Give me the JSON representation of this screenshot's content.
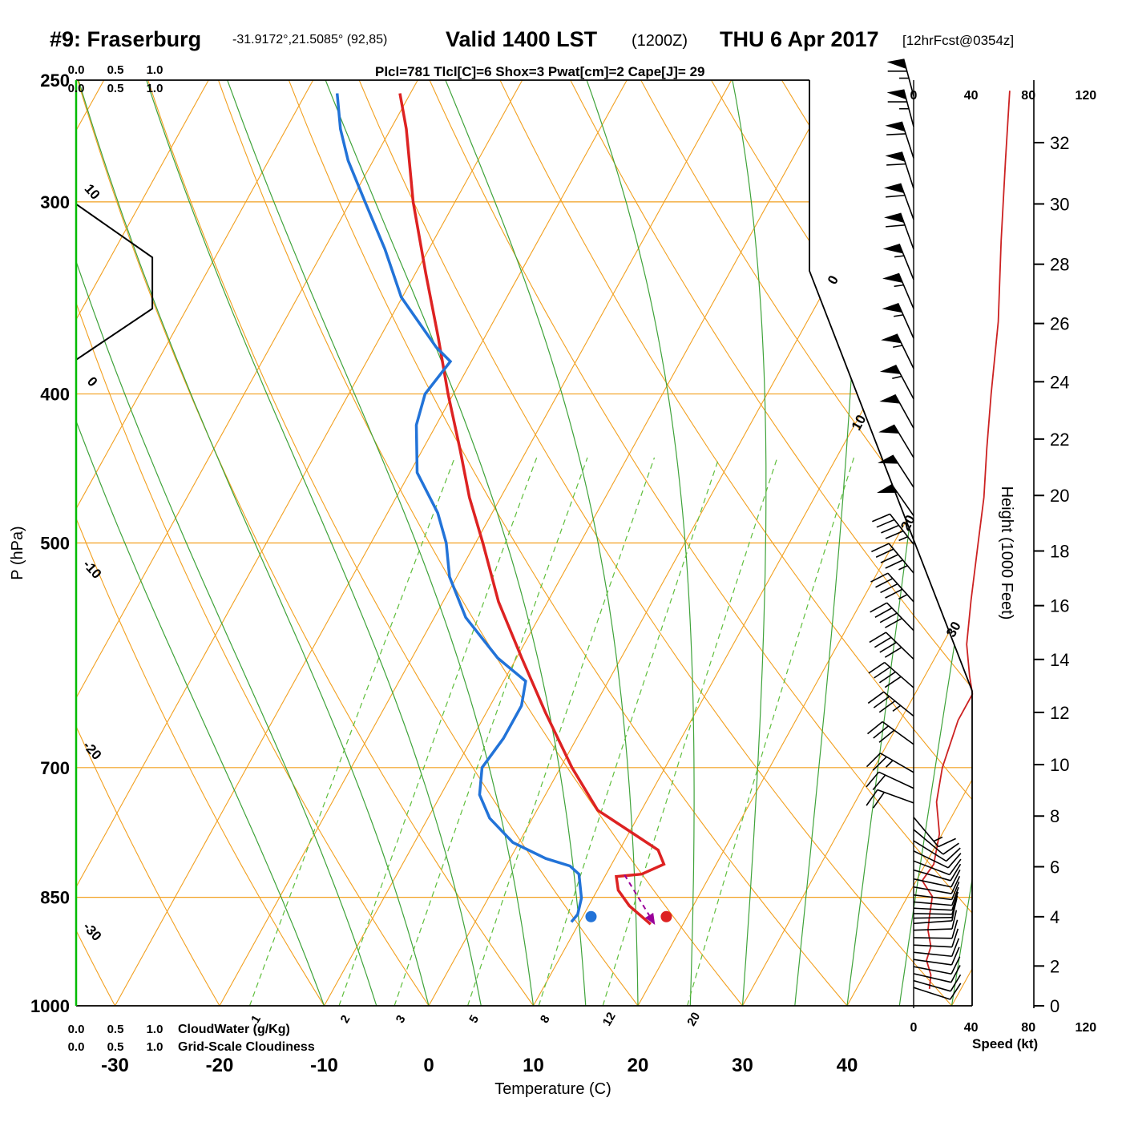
{
  "title": {
    "station": "#9: Fraserburg",
    "coords": "-31.9172°,21.5085° (92,85)",
    "valid": "Valid 1400 LST",
    "zulu": "(1200Z)",
    "date": "THU 6 Apr 2017",
    "fcst": "[12hrFcst@0354z]"
  },
  "params_line": "Plcl=781 Tlcl[C]=6 Shox=3 Pwat[cm]=2 Cape[J]= 29",
  "axes": {
    "pressure_label": "P (hPa)",
    "pressure_ticks": [
      250,
      300,
      400,
      500,
      700,
      850,
      1000
    ],
    "temp_label": "Temperature (C)",
    "temp_ticks": [
      -30,
      -20,
      -10,
      0,
      10,
      20,
      30,
      40
    ],
    "height_label": "Height (1000 Feet)",
    "height_ticks": [
      0,
      2,
      4,
      6,
      8,
      10,
      12,
      14,
      16,
      18,
      20,
      22,
      24,
      26,
      28,
      30,
      32
    ],
    "speed_label": "Speed (kt)",
    "speed_ticks": [
      0,
      40,
      80,
      120
    ],
    "cloud_ticks": [
      "0.0",
      "0.5",
      "1.0"
    ],
    "cloudwater_label": "CloudWater (g/Kg)",
    "cloudiness_label": "Grid-Scale Cloudiness",
    "mixing_ratio_labels": [
      1,
      2,
      3,
      5,
      8,
      12,
      20
    ],
    "dry_adiabat_labels": [
      10,
      0,
      -10,
      -20,
      -30
    ],
    "isotherm_labels": [
      0,
      10,
      20,
      30
    ]
  },
  "colors": {
    "orange": "#F2A020",
    "green": "#3FA33A",
    "lightgreen": "#5FBE3C",
    "darkgreen": "#3E8E2E",
    "brightgreen": "#00BB00",
    "red": "#DD2222",
    "blue": "#2273D8",
    "speed_red": "#CC2222",
    "magenta": "#BB1177",
    "purple": "#990099",
    "black": "#000000"
  },
  "chart_data": {
    "type": "skewt-logp",
    "pressure_range_hpa": [
      1000,
      250
    ],
    "temp_range_c_at_surface": [
      -40,
      45
    ],
    "temperature_profile": [
      [
        255,
        -51
      ],
      [
        269,
        -48.5
      ],
      [
        300,
        -44
      ],
      [
        334,
        -39
      ],
      [
        367,
        -34.5
      ],
      [
        400,
        -30.5
      ],
      [
        434,
        -26.5
      ],
      [
        467,
        -23
      ],
      [
        500,
        -19.3
      ],
      [
        546,
        -14.7
      ],
      [
        594,
        -9.5
      ],
      [
        645,
        -4.3
      ],
      [
        700,
        1.1
      ],
      [
        746,
        5.8
      ],
      [
        773,
        10.5
      ],
      [
        792,
        13.7
      ],
      [
        809,
        15.0
      ],
      [
        821,
        13.4
      ],
      [
        824,
        11.1
      ],
      [
        841,
        12.0
      ],
      [
        861,
        13.9
      ],
      [
        885,
        16.9
      ]
    ],
    "dewpoint_profile": [
      [
        255,
        -57
      ],
      [
        269,
        -54.8
      ],
      [
        282,
        -52.4
      ],
      [
        300,
        -48.6
      ],
      [
        322,
        -44.2
      ],
      [
        346,
        -40.1
      ],
      [
        373,
        -34.1
      ],
      [
        381,
        -32.0
      ],
      [
        400,
        -32.7
      ],
      [
        419,
        -31.9
      ],
      [
        450,
        -29.3
      ],
      [
        478,
        -25.2
      ],
      [
        500,
        -22.8
      ],
      [
        526,
        -20.7
      ],
      [
        559,
        -17.0
      ],
      [
        594,
        -11.8
      ],
      [
        615,
        -7.9
      ],
      [
        638,
        -7.0
      ],
      [
        670,
        -7.0
      ],
      [
        700,
        -7.5
      ],
      [
        729,
        -6.3
      ],
      [
        755,
        -4.1
      ],
      [
        783,
        -0.6
      ],
      [
        802,
        3.4
      ],
      [
        811,
        6.1
      ],
      [
        821,
        7.4
      ],
      [
        851,
        8.9
      ],
      [
        872,
        9.4
      ],
      [
        882,
        9.2
      ]
    ],
    "surface": {
      "pressure": 875,
      "temp": 18.0,
      "dewpoint": 10.8
    },
    "parcel_arrow": {
      "from": [
        822,
        11.8
      ],
      "to": [
        884,
        17.2
      ]
    },
    "cloudiness_profile": [
      [
        380,
        0
      ],
      [
        352,
        0.97
      ],
      [
        326,
        0.97
      ],
      [
        301,
        0
      ]
    ],
    "wind_speed_profile_kt": [
      [
        254,
        67
      ],
      [
        282,
        64
      ],
      [
        318,
        61
      ],
      [
        359,
        59
      ],
      [
        400,
        54
      ],
      [
        434,
        51
      ],
      [
        467,
        49
      ],
      [
        500,
        45
      ],
      [
        545,
        40
      ],
      [
        582,
        37
      ],
      [
        610,
        39
      ],
      [
        627,
        41
      ],
      [
        652,
        31
      ],
      [
        700,
        20
      ],
      [
        737,
        16
      ],
      [
        773,
        18
      ],
      [
        809,
        14
      ],
      [
        829,
        6
      ],
      [
        849,
        13
      ],
      [
        875,
        11
      ],
      [
        893,
        10
      ],
      [
        915,
        12
      ],
      [
        934,
        9
      ],
      [
        955,
        12
      ],
      [
        975,
        11
      ]
    ],
    "wind_barbs_p_dir_spd": [
      [
        256,
        345,
        65
      ],
      [
        268,
        345,
        63
      ],
      [
        281,
        342,
        62
      ],
      [
        294,
        342,
        60
      ],
      [
        308,
        340,
        60
      ],
      [
        322,
        340,
        58
      ],
      [
        337,
        338,
        56
      ],
      [
        352,
        337,
        55
      ],
      [
        368,
        336,
        55
      ],
      [
        385,
        334,
        55
      ],
      [
        403,
        332,
        53
      ],
      [
        421,
        331,
        52
      ],
      [
        440,
        329,
        50
      ],
      [
        460,
        327,
        50
      ],
      [
        480,
        325,
        48
      ],
      [
        501,
        322,
        46
      ],
      [
        523,
        320,
        45
      ],
      [
        546,
        318,
        43
      ],
      [
        570,
        316,
        42
      ],
      [
        595,
        314,
        40
      ],
      [
        621,
        311,
        39
      ],
      [
        648,
        309,
        35
      ],
      [
        676,
        306,
        31
      ],
      [
        705,
        300,
        24
      ],
      [
        722,
        295,
        21
      ],
      [
        738,
        290,
        18
      ],
      [
        754,
        140,
        13
      ],
      [
        768,
        130,
        12
      ],
      [
        781,
        122,
        11
      ],
      [
        793,
        116,
        11
      ],
      [
        805,
        111,
        12
      ],
      [
        816,
        106,
        12
      ],
      [
        827,
        102,
        11
      ],
      [
        837,
        100,
        10
      ],
      [
        847,
        97,
        10
      ],
      [
        856,
        95,
        9
      ],
      [
        864,
        93,
        9
      ],
      [
        871,
        91,
        8
      ],
      [
        877,
        89,
        8
      ],
      [
        884,
        86,
        9
      ],
      [
        893,
        88,
        10
      ],
      [
        903,
        91,
        11
      ],
      [
        913,
        93,
        11
      ],
      [
        923,
        96,
        10
      ],
      [
        933,
        98,
        11
      ],
      [
        943,
        101,
        10
      ],
      [
        953,
        103,
        11
      ],
      [
        963,
        106,
        10
      ],
      [
        973,
        108,
        10
      ]
    ],
    "grid": {
      "isotherms_c_step": 10,
      "dry_adiabats_c": [
        -40,
        -30,
        -20,
        -10,
        0,
        10,
        20,
        30,
        40,
        50,
        60,
        70,
        80,
        90,
        100,
        110
      ],
      "moist_adiabats_start_c": [
        -10,
        -5,
        0,
        5,
        10,
        15,
        20,
        25,
        30,
        35,
        40,
        45,
        50,
        55
      ],
      "mixing_ratio_g_kg": [
        1,
        2,
        3,
        5,
        8,
        12,
        20
      ],
      "pressure_lines_hpa": [
        300,
        400,
        500,
        700,
        850,
        1000
      ]
    }
  }
}
